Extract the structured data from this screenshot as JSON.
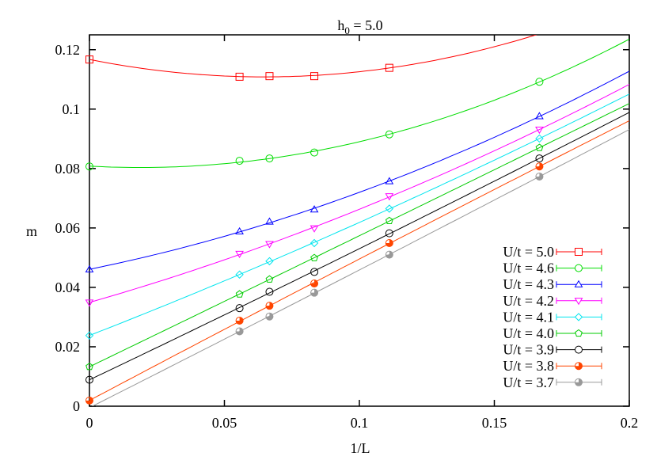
{
  "chart_data": {
    "type": "line",
    "title": {
      "main": "h",
      "sub": "0",
      "rest": " = 5.0"
    },
    "xlabel": "1/L",
    "ylabel": "m",
    "xlim": [
      0,
      0.2
    ],
    "ylim": [
      0,
      0.125
    ],
    "xticks": [
      {
        "v": 0,
        "label": "0"
      },
      {
        "v": 0.05,
        "label": "0.05"
      },
      {
        "v": 0.1,
        "label": "0.1"
      },
      {
        "v": 0.15,
        "label": "0.15"
      },
      {
        "v": 0.2,
        "label": "0.2"
      }
    ],
    "yticks": [
      {
        "v": 0,
        "label": "0"
      },
      {
        "v": 0.02,
        "label": "0.02"
      },
      {
        "v": 0.04,
        "label": "0.04"
      },
      {
        "v": 0.06,
        "label": "0.06"
      },
      {
        "v": 0.08,
        "label": "0.08"
      },
      {
        "v": 0.1,
        "label": "0.1"
      },
      {
        "v": 0.12,
        "label": "0.12"
      }
    ],
    "grid": false,
    "legend_position": "bottom-right",
    "series": [
      {
        "name": "U/t = 5.0",
        "color": "#ff0000",
        "marker": "square",
        "x": [
          0,
          0.0556,
          0.0667,
          0.0833,
          0.1111
        ],
        "y": [
          0.1167,
          0.1109,
          0.1111,
          0.1111,
          0.1139
        ]
      },
      {
        "name": "U/t = 4.6",
        "color": "#00dd00",
        "marker": "circle",
        "x": [
          0,
          0.0556,
          0.0667,
          0.0833,
          0.1111,
          0.1667
        ],
        "y": [
          0.0807,
          0.0826,
          0.0834,
          0.0854,
          0.0915,
          0.1092
        ]
      },
      {
        "name": "U/t = 4.3",
        "color": "#0000ff",
        "marker": "triangle-up",
        "x": [
          0,
          0.0556,
          0.0667,
          0.0833,
          0.1111,
          0.1667
        ],
        "y": [
          0.046,
          0.0588,
          0.0621,
          0.0662,
          0.0757,
          0.0976
        ]
      },
      {
        "name": "U/t = 4.2",
        "color": "#ff00ff",
        "marker": "triangle-down",
        "x": [
          0,
          0.0556,
          0.0667,
          0.0833,
          0.1111,
          0.1667
        ],
        "y": [
          0.0349,
          0.0513,
          0.0546,
          0.0599,
          0.0707,
          0.0931
        ]
      },
      {
        "name": "U/t = 4.1",
        "color": "#00e5ee",
        "marker": "diamond",
        "x": [
          0,
          0.0556,
          0.0667,
          0.0833,
          0.1111,
          0.1667
        ],
        "y": [
          0.0238,
          0.0443,
          0.0488,
          0.0549,
          0.0665,
          0.0901
        ]
      },
      {
        "name": "U/t = 4.0",
        "color": "#00cc00",
        "marker": "pentagon",
        "x": [
          0,
          0.0556,
          0.0667,
          0.0833,
          0.1111,
          0.1667
        ],
        "y": [
          0.0133,
          0.0377,
          0.0427,
          0.0499,
          0.0624,
          0.087
        ]
      },
      {
        "name": "U/t = 3.9",
        "color": "#000000",
        "marker": "circle",
        "x": [
          0,
          0.0556,
          0.0667,
          0.0833,
          0.1111,
          0.1667
        ],
        "y": [
          0.0089,
          0.033,
          0.0385,
          0.0452,
          0.0582,
          0.0834
        ]
      },
      {
        "name": "U/t = 3.8",
        "color": "#ff4500",
        "marker": "half-circle",
        "x": [
          0,
          0.0556,
          0.0667,
          0.0833,
          0.1111,
          0.1667
        ],
        "y": [
          0.0019,
          0.0288,
          0.0338,
          0.0413,
          0.0549,
          0.0807
        ]
      },
      {
        "name": "U/t = 3.7",
        "color": "#999999",
        "marker": "half-circle",
        "x": [
          0.0556,
          0.0667,
          0.0833,
          0.1111,
          0.1667
        ],
        "y": [
          0.0252,
          0.0302,
          0.0382,
          0.051,
          0.0773
        ]
      }
    ]
  }
}
